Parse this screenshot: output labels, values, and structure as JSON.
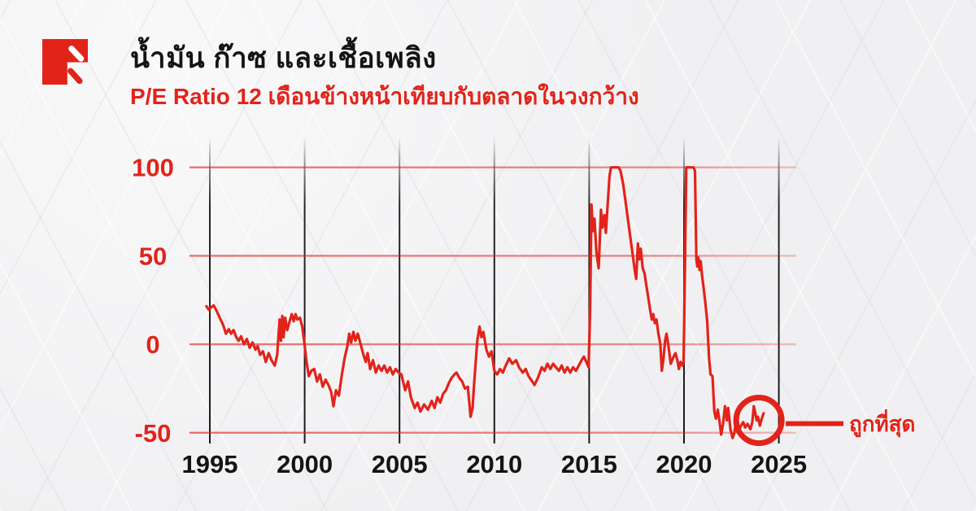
{
  "page": {
    "background_color": "#f0f0f2"
  },
  "brand": {
    "logo_color": "#e2231a"
  },
  "header": {
    "title": "น้ำมัน ก๊าซ และเชื้อเพลิง",
    "subtitle": "P/E Ratio 12 เดือนข้างหน้าเทียบกับตลาดในวงกว้าง",
    "title_color": "#141414",
    "subtitle_color": "#e2231a"
  },
  "chart_data": {
    "type": "line",
    "title": "P/E Ratio 12 เดือนข้างหน้าเทียบกับตลาดในวงกว้าง",
    "xlabel": "",
    "ylabel": "",
    "x_ticks": [
      1995,
      2000,
      2005,
      2010,
      2015,
      2020,
      2025
    ],
    "y_ticks": [
      100,
      50,
      0,
      -50
    ],
    "xlim": [
      1993.9,
      2025.9
    ],
    "ylim": [
      -50,
      100
    ],
    "grid": {
      "horizontal_color": "#e2231a",
      "vertical_color": "#2a2a2a",
      "legend": "none"
    },
    "annotation": {
      "label": "ถูกที่สุด",
      "x": 2023.95,
      "y": -43,
      "color": "#e2231a"
    },
    "series": [
      {
        "name": "P/E Ratio 12 เดือนข้างหน้าเทียบกับตลาดในวงกว้าง",
        "color": "#e2231a",
        "points": [
          [
            1994.82,
            21.5
          ],
          [
            1994.95,
            19.5
          ],
          [
            1995.08,
            21
          ],
          [
            1995.2,
            22
          ],
          [
            1995.35,
            19
          ],
          [
            1995.5,
            15.5
          ],
          [
            1995.7,
            11
          ],
          [
            1995.85,
            6
          ],
          [
            1996.0,
            8.5
          ],
          [
            1996.12,
            6
          ],
          [
            1996.25,
            8
          ],
          [
            1996.4,
            4
          ],
          [
            1996.52,
            2
          ],
          [
            1996.65,
            4.5
          ],
          [
            1996.8,
            0
          ],
          [
            1996.95,
            3
          ],
          [
            1997.1,
            -2
          ],
          [
            1997.25,
            1
          ],
          [
            1997.4,
            -3
          ],
          [
            1997.52,
            -1
          ],
          [
            1997.65,
            -6
          ],
          [
            1997.8,
            -4
          ],
          [
            1997.95,
            -10
          ],
          [
            1998.1,
            -5
          ],
          [
            1998.25,
            -9
          ],
          [
            1998.42,
            -12
          ],
          [
            1998.55,
            -6
          ],
          [
            1998.68,
            14
          ],
          [
            1998.75,
            2
          ],
          [
            1998.82,
            16
          ],
          [
            1998.89,
            4
          ],
          [
            1998.97,
            15
          ],
          [
            1999.08,
            8
          ],
          [
            1999.18,
            12
          ],
          [
            1999.32,
            17
          ],
          [
            1999.42,
            13
          ],
          [
            1999.52,
            17
          ],
          [
            1999.62,
            14
          ],
          [
            1999.75,
            15
          ],
          [
            1999.87,
            10
          ],
          [
            1999.97,
            2
          ],
          [
            2000.1,
            -10
          ],
          [
            2000.22,
            -18
          ],
          [
            2000.35,
            -15
          ],
          [
            2000.5,
            -14
          ],
          [
            2000.65,
            -21
          ],
          [
            2000.8,
            -17
          ],
          [
            2000.95,
            -24
          ],
          [
            2001.1,
            -20
          ],
          [
            2001.25,
            -23
          ],
          [
            2001.4,
            -27
          ],
          [
            2001.52,
            -35
          ],
          [
            2001.65,
            -26
          ],
          [
            2001.8,
            -29
          ],
          [
            2001.95,
            -18
          ],
          [
            2002.1,
            -8
          ],
          [
            2002.25,
            -1
          ],
          [
            2002.35,
            6
          ],
          [
            2002.45,
            1
          ],
          [
            2002.57,
            7
          ],
          [
            2002.67,
            2
          ],
          [
            2002.8,
            6
          ],
          [
            2002.95,
            0
          ],
          [
            2003.1,
            -6
          ],
          [
            2003.22,
            -10
          ],
          [
            2003.32,
            -5
          ],
          [
            2003.45,
            -14
          ],
          [
            2003.6,
            -9
          ],
          [
            2003.75,
            -16
          ],
          [
            2003.9,
            -12
          ],
          [
            2004.05,
            -15
          ],
          [
            2004.2,
            -12
          ],
          [
            2004.35,
            -16
          ],
          [
            2004.5,
            -13
          ],
          [
            2004.65,
            -17
          ],
          [
            2004.8,
            -14
          ],
          [
            2004.95,
            -16
          ],
          [
            2005.1,
            -17
          ],
          [
            2005.3,
            -26
          ],
          [
            2005.45,
            -21
          ],
          [
            2005.6,
            -30
          ],
          [
            2005.8,
            -36
          ],
          [
            2005.95,
            -33
          ],
          [
            2006.1,
            -38
          ],
          [
            2006.3,
            -34
          ],
          [
            2006.5,
            -37
          ],
          [
            2006.7,
            -32
          ],
          [
            2006.85,
            -36
          ],
          [
            2007.0,
            -30
          ],
          [
            2007.15,
            -33
          ],
          [
            2007.3,
            -28
          ],
          [
            2007.45,
            -26
          ],
          [
            2007.6,
            -22
          ],
          [
            2007.75,
            -19
          ],
          [
            2007.9,
            -17
          ],
          [
            2008.0,
            -16
          ],
          [
            2008.15,
            -19
          ],
          [
            2008.3,
            -21
          ],
          [
            2008.45,
            -25
          ],
          [
            2008.6,
            -24
          ],
          [
            2008.75,
            -41
          ],
          [
            2008.85,
            -36
          ],
          [
            2008.95,
            -20
          ],
          [
            2009.1,
            2
          ],
          [
            2009.22,
            10
          ],
          [
            2009.32,
            4
          ],
          [
            2009.42,
            7
          ],
          [
            2009.58,
            -3
          ],
          [
            2009.72,
            -7
          ],
          [
            2009.85,
            -4
          ],
          [
            2010.0,
            -15
          ],
          [
            2010.15,
            -17
          ],
          [
            2010.3,
            -14
          ],
          [
            2010.45,
            -16
          ],
          [
            2010.6,
            -12
          ],
          [
            2010.78,
            -8
          ],
          [
            2010.95,
            -11
          ],
          [
            2011.15,
            -9
          ],
          [
            2011.3,
            -13
          ],
          [
            2011.5,
            -16
          ],
          [
            2011.65,
            -14
          ],
          [
            2011.8,
            -18
          ],
          [
            2012.0,
            -21
          ],
          [
            2012.12,
            -23
          ],
          [
            2012.3,
            -19
          ],
          [
            2012.5,
            -13
          ],
          [
            2012.65,
            -15
          ],
          [
            2012.8,
            -11
          ],
          [
            2012.95,
            -14
          ],
          [
            2013.1,
            -11
          ],
          [
            2013.25,
            -13
          ],
          [
            2013.4,
            -15
          ],
          [
            2013.55,
            -12
          ],
          [
            2013.7,
            -16
          ],
          [
            2013.85,
            -13
          ],
          [
            2014.0,
            -16
          ],
          [
            2014.15,
            -13
          ],
          [
            2014.3,
            -15
          ],
          [
            2014.45,
            -12
          ],
          [
            2014.6,
            -9
          ],
          [
            2014.72,
            -7
          ],
          [
            2014.85,
            -10
          ],
          [
            2014.97,
            -13
          ],
          [
            2015.05,
            20
          ],
          [
            2015.12,
            79
          ],
          [
            2015.2,
            64
          ],
          [
            2015.28,
            71
          ],
          [
            2015.38,
            52
          ],
          [
            2015.5,
            43
          ],
          [
            2015.62,
            76
          ],
          [
            2015.7,
            66
          ],
          [
            2015.8,
            73
          ],
          [
            2015.88,
            63
          ],
          [
            2015.97,
            78
          ],
          [
            2016.07,
            95
          ],
          [
            2016.15,
            100
          ],
          [
            2016.35,
            100
          ],
          [
            2016.55,
            100
          ],
          [
            2016.65,
            98
          ],
          [
            2016.8,
            90
          ],
          [
            2016.95,
            78
          ],
          [
            2017.1,
            66
          ],
          [
            2017.25,
            54
          ],
          [
            2017.4,
            42
          ],
          [
            2017.48,
            37
          ],
          [
            2017.57,
            57
          ],
          [
            2017.64,
            48
          ],
          [
            2017.72,
            54
          ],
          [
            2017.82,
            43
          ],
          [
            2017.92,
            40
          ],
          [
            2018.02,
            33
          ],
          [
            2018.12,
            26
          ],
          [
            2018.22,
            19
          ],
          [
            2018.3,
            14
          ],
          [
            2018.38,
            17
          ],
          [
            2018.46,
            12
          ],
          [
            2018.55,
            14
          ],
          [
            2018.65,
            6
          ],
          [
            2018.75,
            0
          ],
          [
            2018.83,
            -15
          ],
          [
            2018.92,
            -8
          ],
          [
            2019.0,
            2
          ],
          [
            2019.08,
            6
          ],
          [
            2019.17,
            0
          ],
          [
            2019.3,
            -11
          ],
          [
            2019.45,
            -7
          ],
          [
            2019.55,
            -5
          ],
          [
            2019.65,
            -9
          ],
          [
            2019.73,
            -14
          ],
          [
            2019.82,
            -10
          ],
          [
            2019.92,
            -12
          ],
          [
            2019.98,
            -10
          ],
          [
            2020.05,
            45
          ],
          [
            2020.12,
            100
          ],
          [
            2020.3,
            100
          ],
          [
            2020.5,
            100
          ],
          [
            2020.58,
            98
          ],
          [
            2020.65,
            48
          ],
          [
            2020.7,
            44
          ],
          [
            2020.76,
            49
          ],
          [
            2020.82,
            42
          ],
          [
            2020.88,
            47
          ],
          [
            2020.94,
            40
          ],
          [
            2021.02,
            33
          ],
          [
            2021.12,
            24
          ],
          [
            2021.22,
            13
          ],
          [
            2021.32,
            -8
          ],
          [
            2021.4,
            -17
          ],
          [
            2021.5,
            -18
          ],
          [
            2021.6,
            -38
          ],
          [
            2021.68,
            -42
          ],
          [
            2021.78,
            -37
          ],
          [
            2021.88,
            -44
          ],
          [
            2021.96,
            -51
          ],
          [
            2022.06,
            -45
          ],
          [
            2022.16,
            -35
          ],
          [
            2022.26,
            -43
          ],
          [
            2022.33,
            -36
          ],
          [
            2022.45,
            -48
          ],
          [
            2022.56,
            -53
          ],
          [
            2022.66,
            -50
          ],
          [
            2022.78,
            -40
          ],
          [
            2022.9,
            -49
          ],
          [
            2023.0,
            -46
          ],
          [
            2023.12,
            -44
          ],
          [
            2023.22,
            -47
          ],
          [
            2023.35,
            -45
          ],
          [
            2023.5,
            -48
          ],
          [
            2023.6,
            -44
          ],
          [
            2023.68,
            -35
          ],
          [
            2023.76,
            -39
          ],
          [
            2023.83,
            -43
          ],
          [
            2023.9,
            -41
          ],
          [
            2024.0,
            -46
          ],
          [
            2024.1,
            -42
          ],
          [
            2024.2,
            -39
          ]
        ]
      }
    ]
  }
}
